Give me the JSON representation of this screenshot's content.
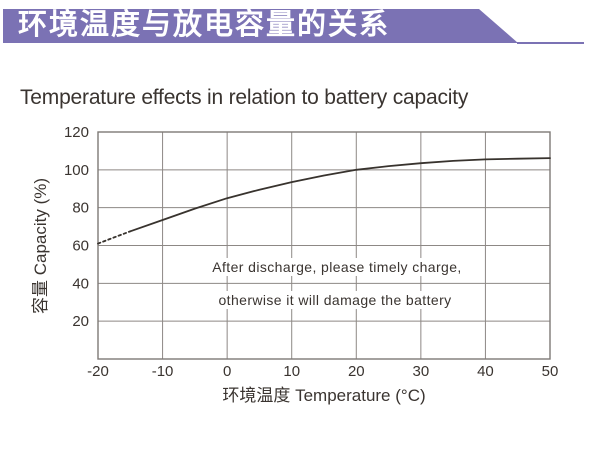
{
  "header": {
    "title": "环境温度与放电容量的关系",
    "accent_color": "#7b72b4"
  },
  "chart_data": {
    "type": "line",
    "title": "Temperature effects in relation to battery capacity",
    "xlabel": "环境温度 Temperature (°C)",
    "ylabel": "容量 Capacity (%)",
    "xlim": [
      -20,
      50
    ],
    "ylim": [
      0,
      120
    ],
    "x_ticks": [
      -20,
      -10,
      0,
      10,
      20,
      30,
      40,
      50
    ],
    "y_tick_labels": [
      120,
      100,
      80,
      60,
      40,
      20
    ],
    "y_gridlines": [
      20,
      40,
      60,
      80,
      100
    ],
    "grid": true,
    "legend": false,
    "series": [
      {
        "name": "capacity-extrapolated",
        "style": "dashed",
        "points": [
          [
            -20,
            61
          ],
          [
            -17.5,
            64.3
          ],
          [
            -15,
            67.5
          ]
        ]
      },
      {
        "name": "capacity",
        "style": "solid",
        "points": [
          [
            -15,
            67.5
          ],
          [
            -10,
            73.5
          ],
          [
            -5,
            79.5
          ],
          [
            0,
            85
          ],
          [
            5,
            89.5
          ],
          [
            10,
            93.5
          ],
          [
            15,
            97
          ],
          [
            20,
            100
          ],
          [
            25,
            102
          ],
          [
            30,
            103.5
          ],
          [
            35,
            104.7
          ],
          [
            40,
            105.5
          ],
          [
            45,
            105.9
          ],
          [
            50,
            106.2
          ]
        ]
      }
    ],
    "annotation": [
      "After discharge, please timely charge,",
      "otherwise it will damage the battery"
    ]
  },
  "colors": {
    "accent": "#7b72b4",
    "grid": "#8d8885",
    "axis_border": "#7e7976",
    "curve": "#38332e",
    "text": "#3a3430"
  }
}
